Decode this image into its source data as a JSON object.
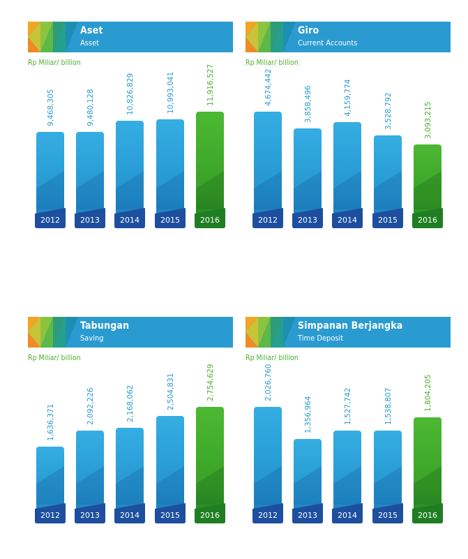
{
  "chart_data": [
    {
      "type": "bar",
      "title": "Aset",
      "subtitle": "Asset",
      "unit_label": "Rp Miliar/ billion",
      "categories": [
        "2012",
        "2013",
        "2014",
        "2015",
        "2016"
      ],
      "values": [
        9468305,
        9480128,
        10826829,
        10993041,
        11916527
      ],
      "value_labels": [
        "9,468,305",
        "9,480,128",
        "10,826,829",
        "10,993,041",
        "11,916,527"
      ],
      "highlight_category": "2016"
    },
    {
      "type": "bar",
      "title": "Giro",
      "subtitle": "Current Accounts",
      "unit_label": "Rp Miliar/ billion",
      "categories": [
        "2012",
        "2013",
        "2014",
        "2015",
        "2016"
      ],
      "values": [
        4674442,
        3858496,
        4159774,
        3528792,
        3093215
      ],
      "value_labels": [
        "4,674,442",
        "3,858,496",
        "4,159,774",
        "3,528,792",
        "3,093,215"
      ],
      "highlight_category": "2016"
    },
    {
      "type": "bar",
      "title": "Tabungan",
      "subtitle": "Saving",
      "unit_label": "Rp Miliar/ billion",
      "categories": [
        "2012",
        "2013",
        "2014",
        "2015",
        "2016"
      ],
      "values": [
        1636371,
        2092226,
        2168062,
        2504831,
        2754629
      ],
      "value_labels": [
        "1,636,371",
        "2,092,226",
        "2,168,062",
        "2,504,831",
        "2,754,629"
      ],
      "highlight_category": "2016"
    },
    {
      "type": "bar",
      "title": "Simpanan Berjangka",
      "subtitle": "Time Deposit",
      "unit_label": "Rp Miliar/ billion",
      "categories": [
        "2012",
        "2013",
        "2014",
        "2015",
        "2016"
      ],
      "values": [
        2026760,
        1356964,
        1527742,
        1538807,
        1804205
      ],
      "value_labels": [
        "2,026,760",
        "1,356,964",
        "1,527,742",
        "1,538,807",
        "1,804,205"
      ],
      "highlight_category": "2016"
    }
  ],
  "colors": {
    "header": "#2a9bd0",
    "bar_blue": "#2c9fda",
    "bar_green": "#3fa42b",
    "label_blue": "#2a9bd0",
    "label_green": "#4fae32",
    "base_blue": "#1d4f9e",
    "base_green": "#1f7e22"
  }
}
